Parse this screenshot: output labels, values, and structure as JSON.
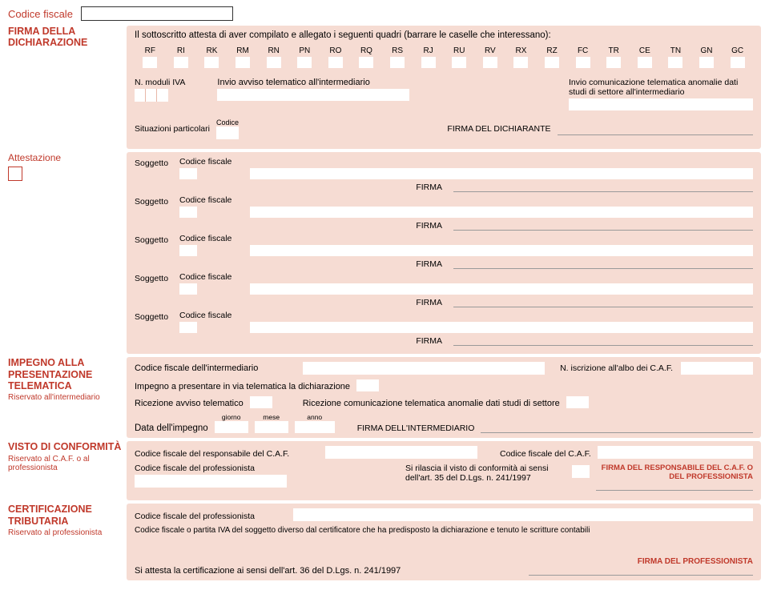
{
  "colors": {
    "accent": "#c0392b",
    "panel": "#f6dcd3",
    "field": "#ffffff",
    "line": "#9a9a9a"
  },
  "top": {
    "codice_fiscale_label": "Codice fiscale"
  },
  "firma_dichiarazione": {
    "title": "FIRMA DELLA DICHIARAZIONE",
    "intro": "Il sottoscritto attesta di aver compilato e allegato i seguenti quadri (barrare le caselle che interessano):",
    "quadri": [
      "RF",
      "RI",
      "RK",
      "RM",
      "RN",
      "PN",
      "RO",
      "RQ",
      "RS",
      "RJ",
      "RU",
      "RV",
      "RX",
      "RZ",
      "FC",
      "TR",
      "CE",
      "TN",
      "GN",
      "GC"
    ],
    "n_moduli": "N. moduli IVA",
    "invio_avviso": "Invio avviso telematico all'intermediario",
    "invio_anomalie": "Invio comunicazione telematica anomalie dati studi di settore all'intermediario",
    "situazioni": "Situazioni particolari",
    "codice_lbl": "Codice",
    "firma_dichiarante": "FIRMA DEL DICHIARANTE"
  },
  "attestazione": {
    "title": "Attestazione",
    "soggetto": "Soggetto",
    "codice_fiscale": "Codice fiscale",
    "firma": "FIRMA",
    "count": 5
  },
  "impegno": {
    "title": "IMPEGNO ALLA PRESENTAZIONE TELEMATICA",
    "subtitle": "Riservato all'intermediario",
    "cf_intermediario": "Codice fiscale dell'intermediario",
    "iscrizione": "N. iscrizione all'albo dei C.A.F.",
    "impegno_presentare": "Impegno a presentare in via telematica la dichiarazione",
    "ricezione_avviso": "Ricezione avviso telematico",
    "ricezione_anomalie": "Ricezione comunicazione telematica anomalie dati studi di settore",
    "data_impegno": "Data dell'impegno",
    "giorno": "giorno",
    "mese": "mese",
    "anno": "anno",
    "firma_intermediario": "FIRMA DELL'INTERMEDIARIO"
  },
  "visto": {
    "title": "VISTO DI CONFORMITÀ",
    "subtitle": "Riservato al C.A.F. o al professionista",
    "cf_responsabile": "Codice fiscale del responsabile del C.A.F.",
    "cf_caf": "Codice fiscale del C.A.F.",
    "cf_professionista": "Codice fiscale del professionista",
    "rilascia": "Si rilascia il visto di conformità ai sensi dell'art. 35 del D.Lgs. n. 241/1997",
    "firma_resp": "FIRMA DEL RESPONSABILE DEL C.A.F. O DEL PROFESSIONISTA"
  },
  "certificazione": {
    "title": "CERTIFICAZIONE TRIBUTARIA",
    "subtitle": "Riservato al professionista",
    "cf_professionista": "Codice fiscale del professionista",
    "cf_soggetto": "Codice fiscale o partita IVA del soggetto diverso dal certificatore che ha predisposto la dichiarazione e tenuto le scritture contabili",
    "attesta": "Si attesta la certificazione ai sensi dell'art. 36 del D.Lgs. n. 241/1997",
    "firma_prof": "FIRMA DEL PROFESSIONISTA"
  }
}
